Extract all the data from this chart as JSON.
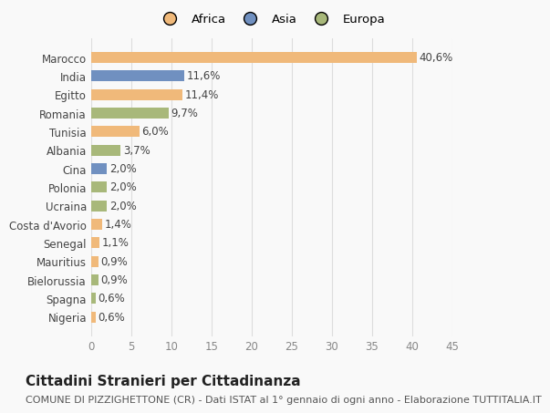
{
  "countries": [
    "Nigeria",
    "Spagna",
    "Bielorussia",
    "Mauritius",
    "Senegal",
    "Costa d'Avorio",
    "Ucraina",
    "Polonia",
    "Cina",
    "Albania",
    "Tunisia",
    "Romania",
    "Egitto",
    "India",
    "Marocco"
  ],
  "values": [
    0.6,
    0.6,
    0.9,
    0.9,
    1.1,
    1.4,
    2.0,
    2.0,
    2.0,
    3.7,
    6.0,
    9.7,
    11.4,
    11.6,
    40.6
  ],
  "labels": [
    "0,6%",
    "0,6%",
    "0,9%",
    "0,9%",
    "1,1%",
    "1,4%",
    "2,0%",
    "2,0%",
    "2,0%",
    "3,7%",
    "6,0%",
    "9,7%",
    "11,4%",
    "11,6%",
    "40,6%"
  ],
  "continents": [
    "Africa",
    "Europa",
    "Europa",
    "Africa",
    "Africa",
    "Africa",
    "Europa",
    "Europa",
    "Asia",
    "Europa",
    "Africa",
    "Europa",
    "Africa",
    "Asia",
    "Africa"
  ],
  "colors": {
    "Africa": "#F0B97A",
    "Asia": "#7090C0",
    "Europa": "#A8B87A"
  },
  "legend_order": [
    "Africa",
    "Asia",
    "Europa"
  ],
  "legend_colors": [
    "#F0B97A",
    "#7090C0",
    "#A8B87A"
  ],
  "xlim": [
    0,
    45
  ],
  "xticks": [
    0,
    5,
    10,
    15,
    20,
    25,
    30,
    35,
    40,
    45
  ],
  "title": "Cittadini Stranieri per Cittadinanza",
  "subtitle": "COMUNE DI PIZZIGHETTONE (CR) - Dati ISTAT al 1° gennaio di ogni anno - Elaborazione TUTTITALIA.IT",
  "bg_color": "#f9f9f9",
  "grid_color": "#dddddd",
  "bar_height": 0.6,
  "label_fontsize": 8.5,
  "tick_fontsize": 8.5,
  "title_fontsize": 11,
  "subtitle_fontsize": 8
}
